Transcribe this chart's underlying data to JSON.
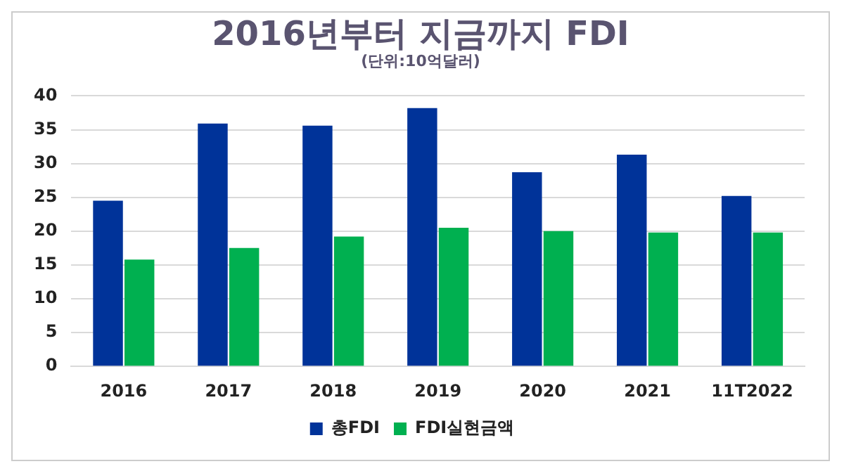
{
  "chart_data": {
    "type": "bar",
    "title": "2016년부터 지금까지 FDI",
    "subtitle": "(단위:10억달러)",
    "categories": [
      "2016",
      "2017",
      "2018",
      "2019",
      "2020",
      "2021",
      "11T2022"
    ],
    "series": [
      {
        "name": "총FDI",
        "color": "#003399",
        "values": [
          24.5,
          35.9,
          35.6,
          38.2,
          28.7,
          31.3,
          25.2
        ]
      },
      {
        "name": "FDI실현금액",
        "color": "#00b050",
        "values": [
          15.8,
          17.5,
          19.2,
          20.5,
          20.0,
          19.8,
          19.8
        ]
      }
    ],
    "ylim": [
      0,
      40
    ],
    "yticks": [
      0,
      5,
      10,
      15,
      20,
      25,
      30,
      35,
      40
    ],
    "grid": "y",
    "legend": "bottom"
  }
}
